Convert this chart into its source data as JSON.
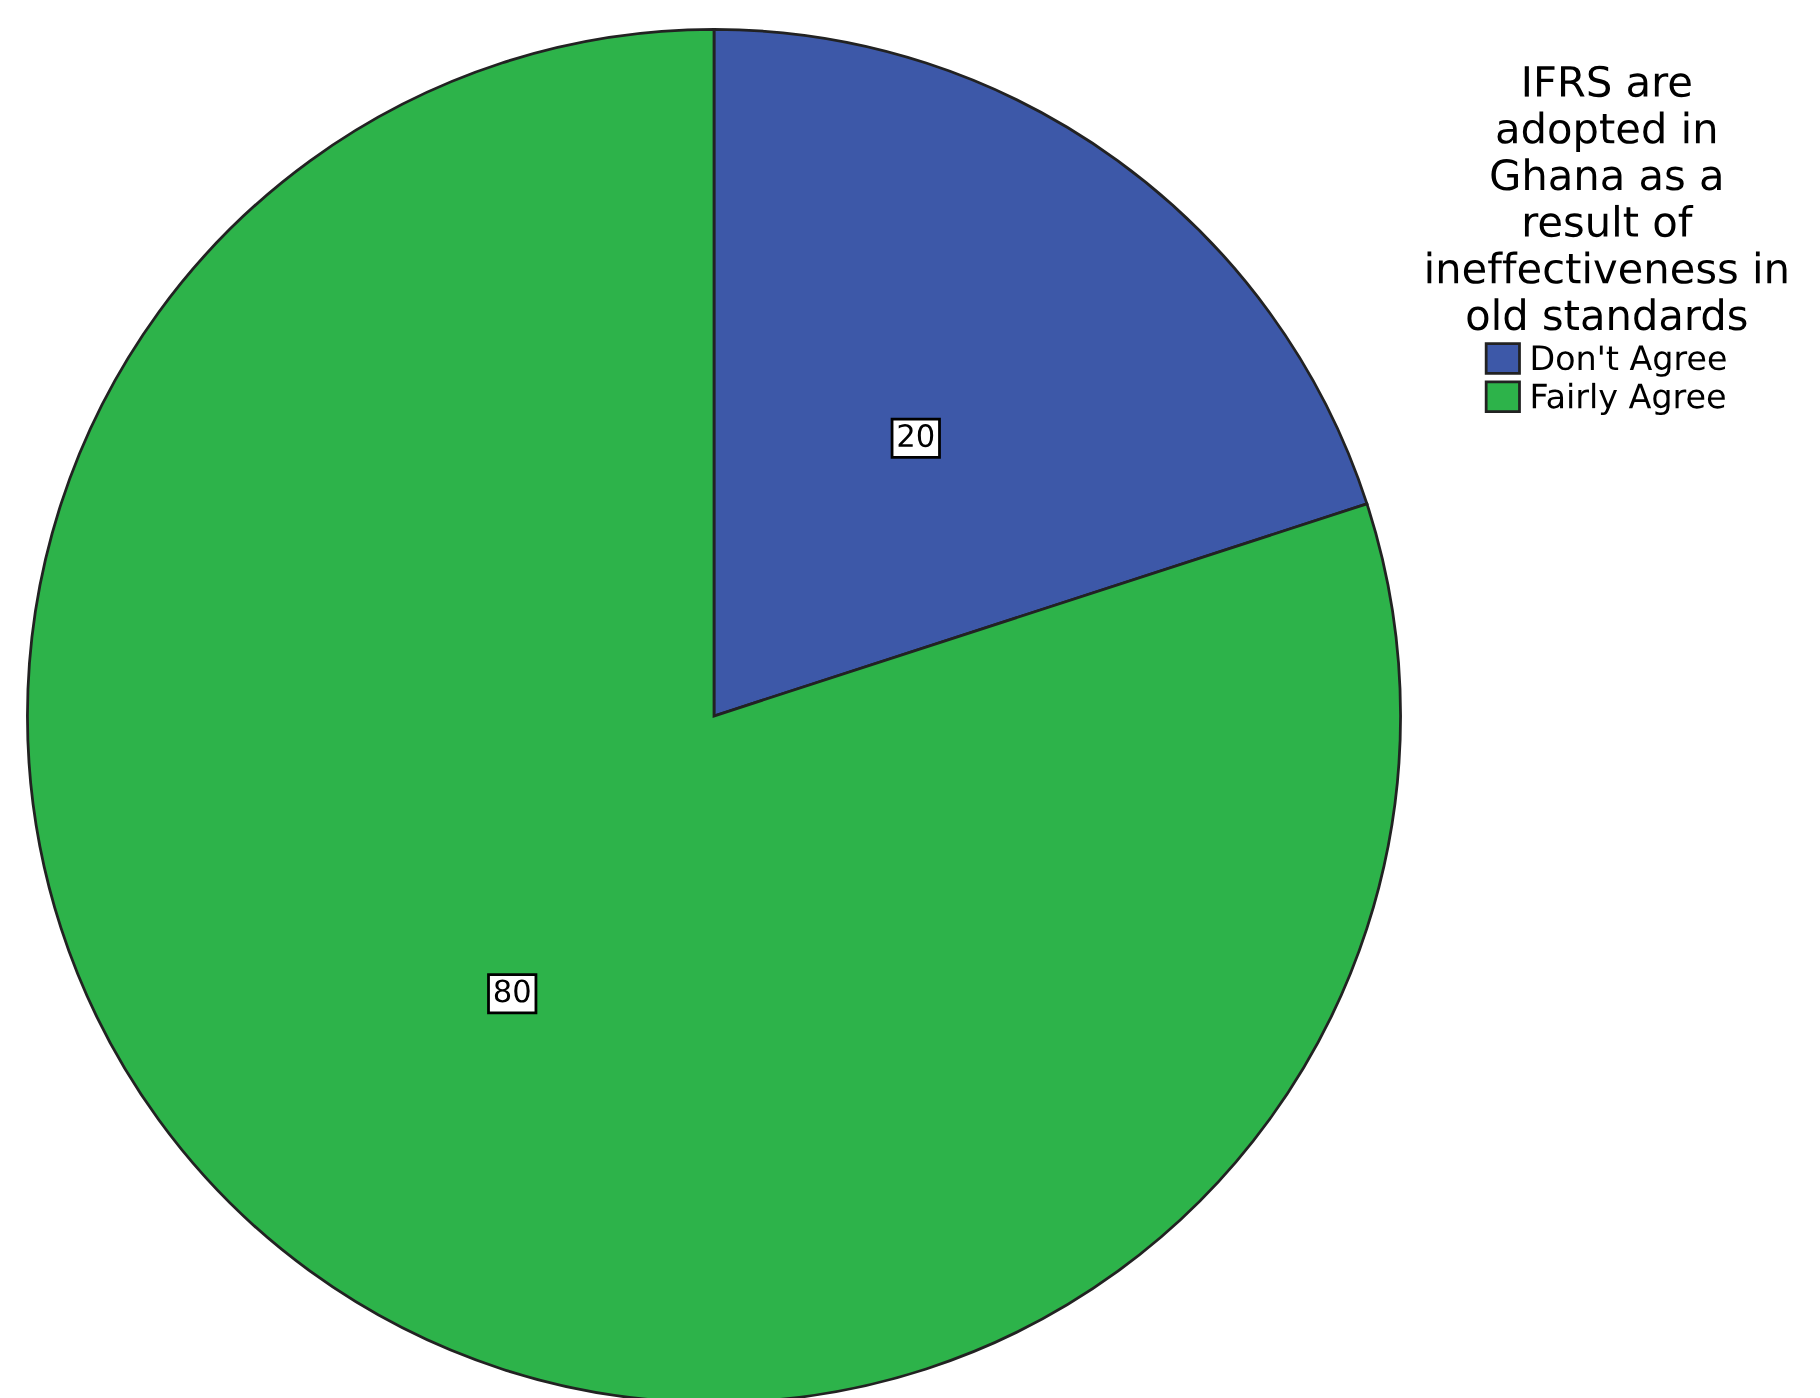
{
  "chart_data": {
    "type": "pie",
    "legend_title": "IFRS are\nadopted in\nGhana as a\nresult of\nineffectiveness in\nold standards",
    "categories": [
      "Don't Agree",
      "Fairly Agree"
    ],
    "values": [
      20,
      80
    ],
    "colors": [
      "#3d58a8",
      "#2db34a"
    ],
    "data_labels": true,
    "legend": "top right"
  }
}
